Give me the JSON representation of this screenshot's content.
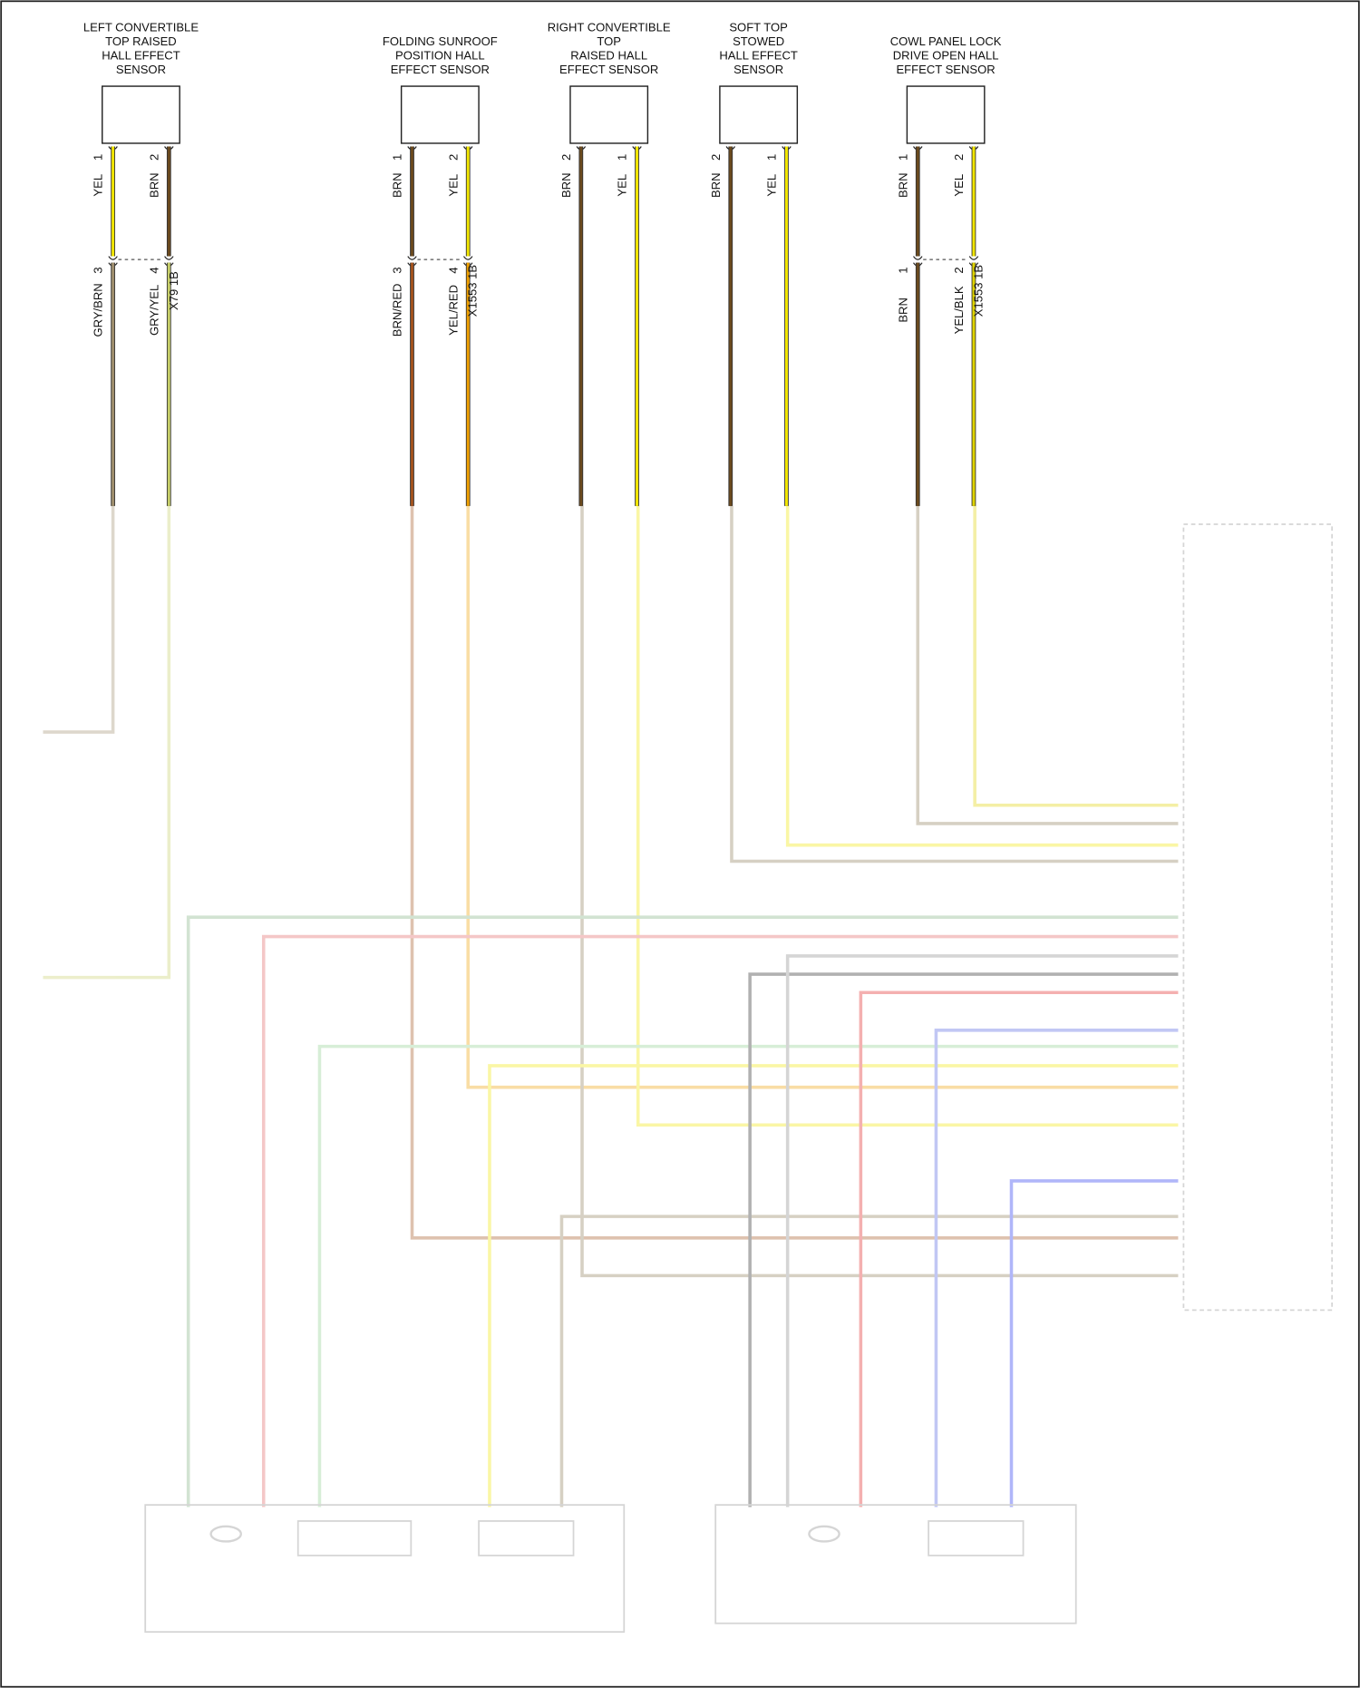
{
  "sensors": [
    {
      "label": [
        "LEFT CONVERTIBLE",
        "TOP RAISED",
        "HALL EFFECT",
        "SENSOR"
      ],
      "wires": [
        {
          "pin": "1",
          "color": "YEL",
          "stroke": "#f2e600"
        },
        {
          "pin": "2",
          "color": "BRN",
          "stroke": "#6b4a1e"
        }
      ],
      "connector": {
        "name": "X79 1B",
        "wires": [
          {
            "pin": "3",
            "color": "GRY/BRN",
            "stroke": "#a08f6e"
          },
          {
            "pin": "4",
            "color": "GRY/YEL",
            "stroke": "#c8cf6a"
          }
        ]
      }
    },
    {
      "label": [
        "FOLDING SUNROOF",
        "POSITION HALL",
        "EFFECT SENSOR"
      ],
      "wires": [
        {
          "pin": "1",
          "color": "BRN",
          "stroke": "#6b4a1e"
        },
        {
          "pin": "2",
          "color": "YEL",
          "stroke": "#f2e600"
        }
      ],
      "connector": {
        "name": "X1553 1B",
        "wires": [
          {
            "pin": "3",
            "color": "BRN/RED",
            "stroke": "#a3531e"
          },
          {
            "pin": "4",
            "color": "YEL/RED",
            "stroke": "#f0a000"
          }
        ]
      }
    },
    {
      "label": [
        "RIGHT CONVERTIBLE",
        "TOP",
        "RAISED HALL",
        "EFFECT SENSOR"
      ],
      "wires": [
        {
          "pin": "2",
          "color": "BRN",
          "stroke": "#6b4a1e"
        },
        {
          "pin": "1",
          "color": "YEL",
          "stroke": "#f2e600"
        }
      ]
    },
    {
      "label": [
        "SOFT TOP",
        "STOWED",
        "HALL EFFECT",
        "SENSOR"
      ],
      "wires": [
        {
          "pin": "2",
          "color": "BRN",
          "stroke": "#6b4a1e"
        },
        {
          "pin": "1",
          "color": "YEL",
          "stroke": "#f2e600"
        }
      ]
    },
    {
      "label": [
        "COWL PANEL LOCK",
        "DRIVE OPEN HALL",
        "EFFECT SENSOR"
      ],
      "wires": [
        {
          "pin": "1",
          "color": "BRN",
          "stroke": "#6b4a1e"
        },
        {
          "pin": "2",
          "color": "YEL",
          "stroke": "#f2e600"
        }
      ],
      "connector": {
        "name": "X1553 1B",
        "wires": [
          {
            "pin": "1",
            "color": "BRN",
            "stroke": "#6b4a1e"
          },
          {
            "pin": "2",
            "color": "YEL/BLK",
            "stroke": "#e0d400"
          }
        ]
      }
    }
  ]
}
